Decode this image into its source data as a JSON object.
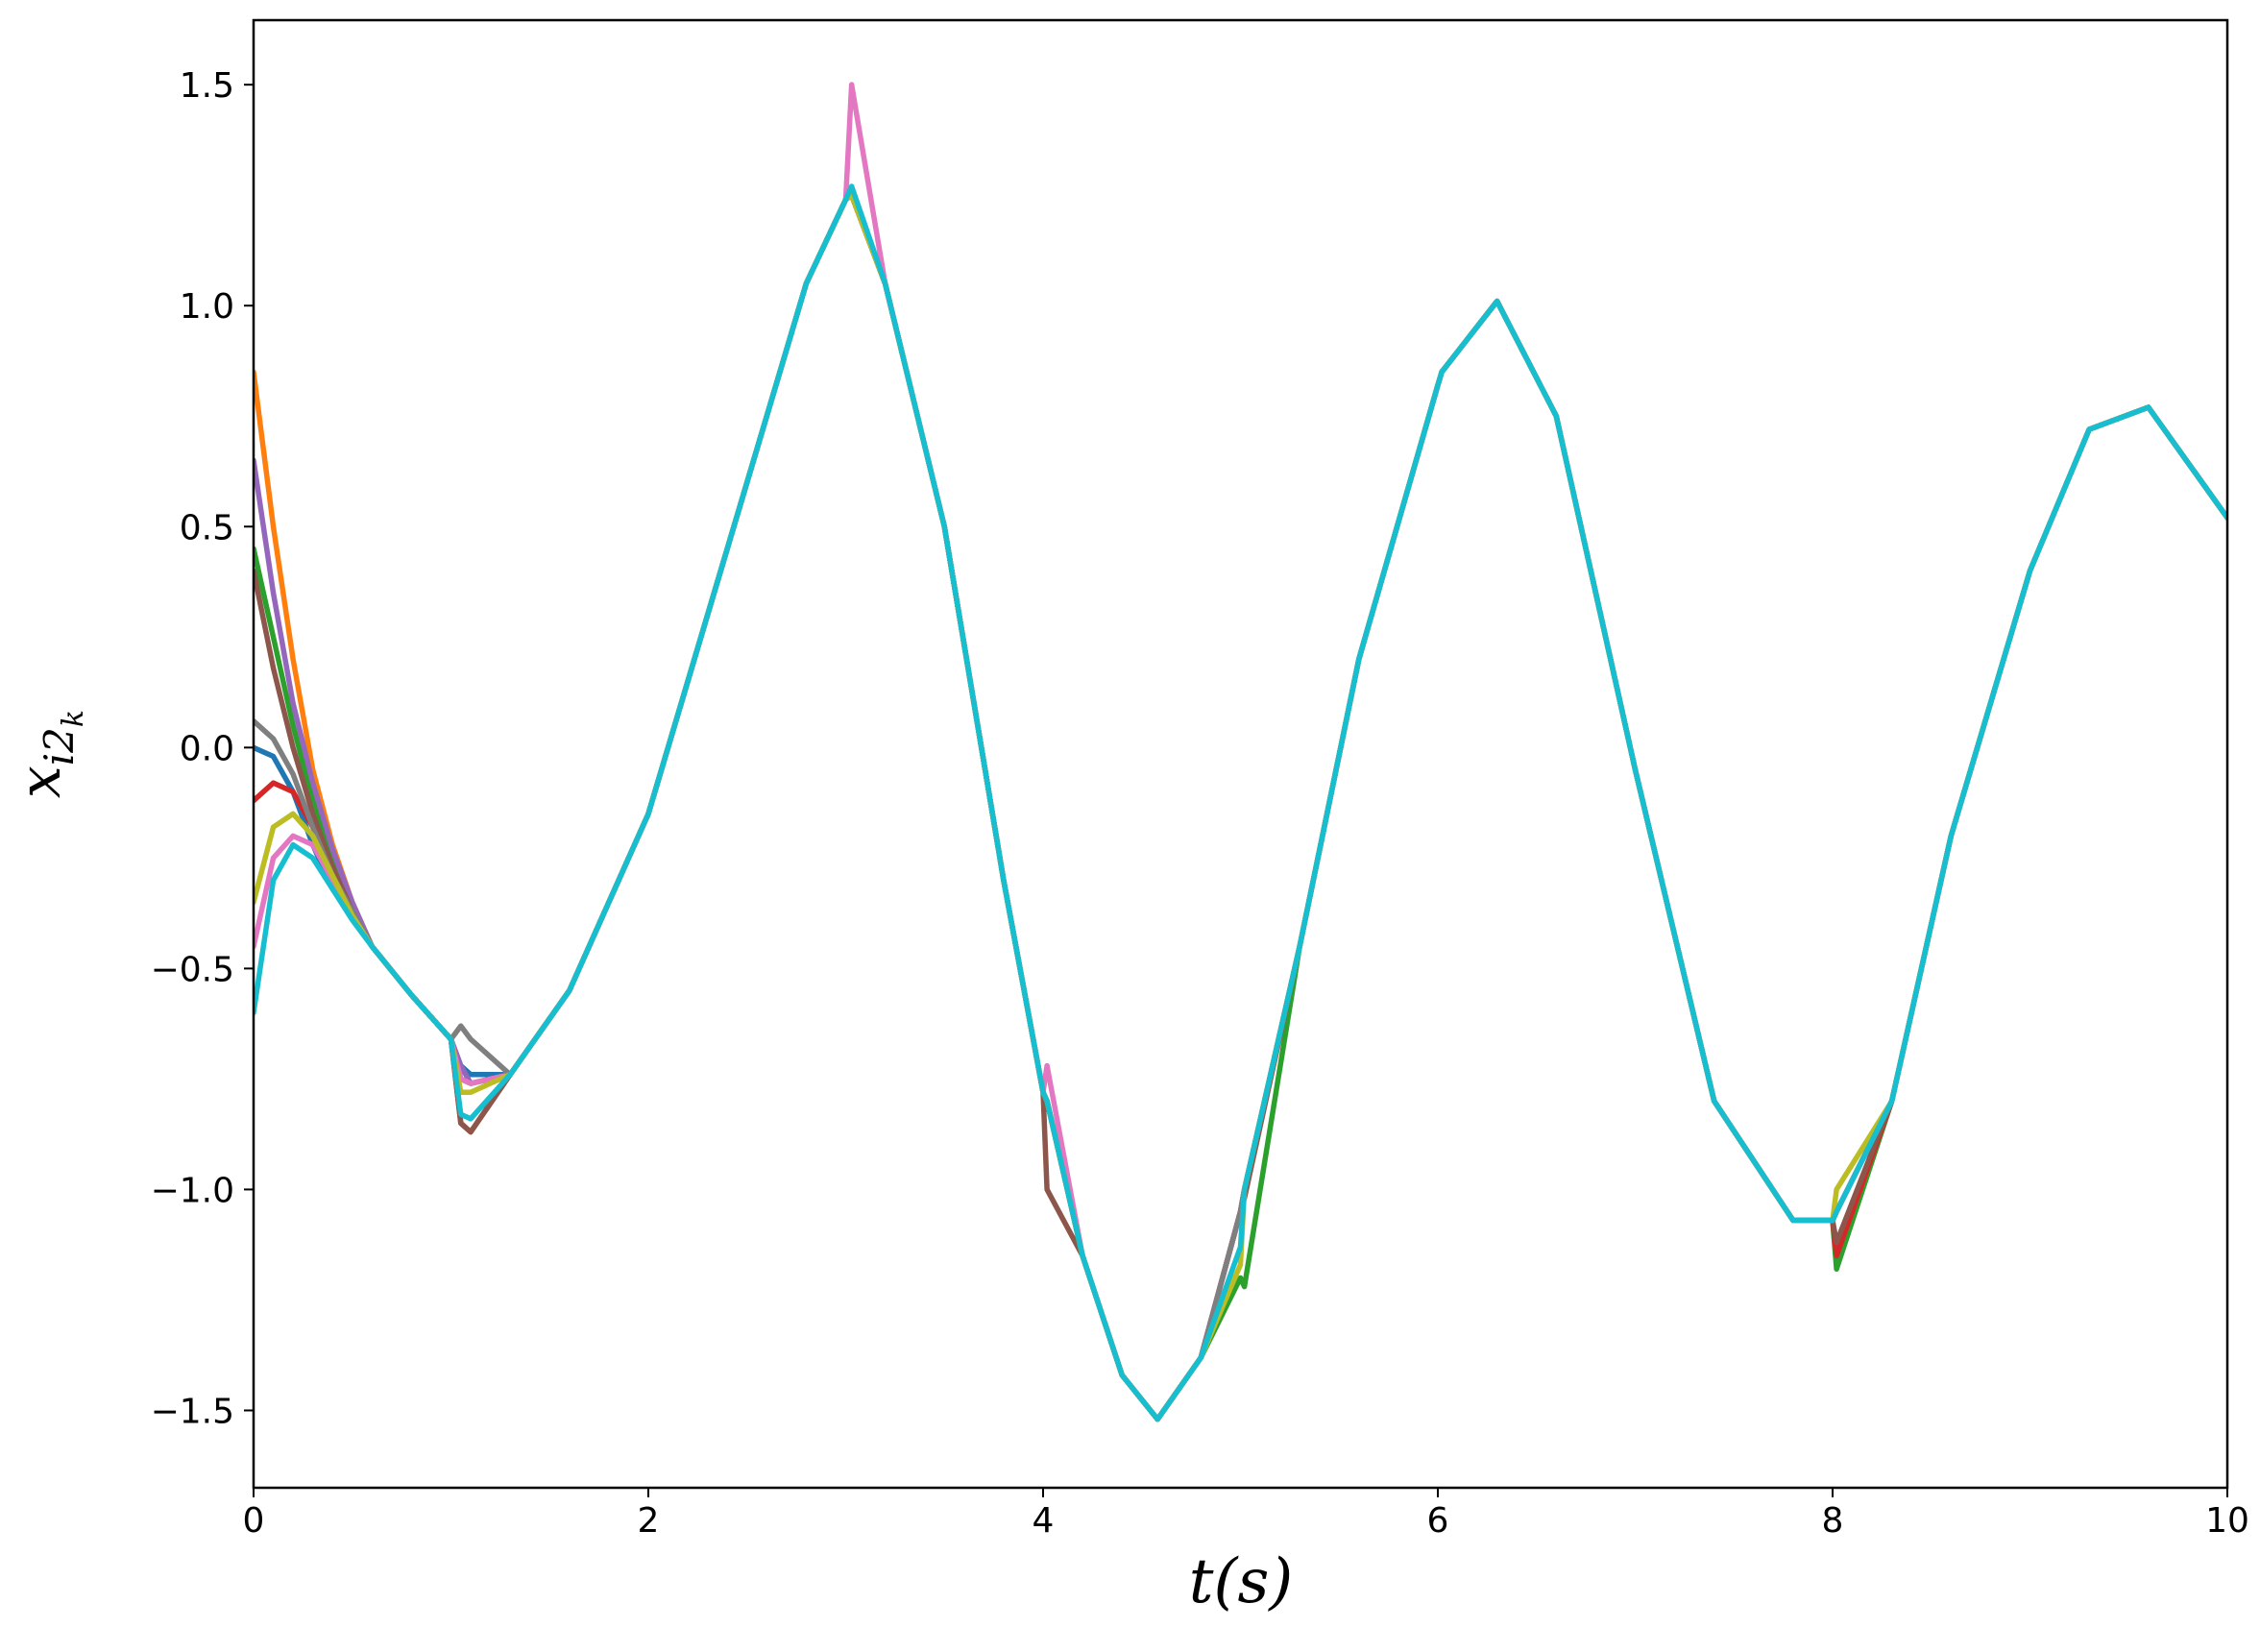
{
  "chart_data": {
    "type": "line",
    "xlabel": "t(s)",
    "ylabel": [
      "x",
      "i2",
      "k"
    ],
    "x": [
      0,
      0.1,
      0.2,
      0.3,
      0.4,
      0.5,
      0.6,
      0.8,
      1.0,
      1.05,
      1.1,
      1.3,
      1.6,
      2.0,
      2.4,
      2.8,
      3.0,
      3.03,
      3.2,
      3.5,
      3.8,
      4.0,
      4.02,
      4.2,
      4.4,
      4.58,
      4.8,
      5.0,
      5.02,
      5.3,
      5.6,
      6.0,
      6.02,
      6.3,
      6.6,
      7.0,
      7.4,
      7.8,
      8.0,
      8.02,
      8.3,
      8.6,
      9.0,
      9.3,
      9.6,
      10.0
    ],
    "xlim": [
      0,
      10
    ],
    "xticks": [
      0,
      2,
      4,
      6,
      8,
      10
    ],
    "ylim": [
      -1.675,
      1.646
    ],
    "yticks": [
      {
        "value": -1.5,
        "label": "−1.5"
      },
      {
        "value": -1,
        "label": "−1.0"
      },
      {
        "value": -0.5,
        "label": "−0.5"
      },
      {
        "value": 0,
        "label": "0.0"
      },
      0.5,
      {
        "value": 1,
        "label": "1.0"
      },
      1.5
    ],
    "grid": false,
    "series": [
      {
        "color": "#1f77b4",
        "values": [
          0.0,
          -0.02,
          -0.1,
          -0.22,
          -0.32,
          -0.38,
          -0.45,
          -0.56,
          -0.66,
          -0.72,
          -0.74,
          -0.74,
          -0.55,
          -0.15,
          0.45,
          1.05,
          1.24,
          1.25,
          1.05,
          0.5,
          -0.3,
          -0.78,
          -0.8,
          -1.15,
          -1.42,
          -1.52,
          -1.38,
          -1.05,
          -1.0,
          -0.45,
          0.2,
          0.82,
          0.85,
          1.01,
          0.75,
          -0.05,
          -0.8,
          -1.07,
          -1.07,
          -1.05,
          -0.8,
          -0.2,
          0.4,
          0.72,
          0.77,
          0.52
        ]
      },
      {
        "color": "#ff7f0e",
        "values": [
          0.85,
          0.5,
          0.2,
          -0.05,
          -0.22,
          -0.35,
          -0.45,
          -0.56,
          -0.66,
          -0.75,
          -0.76,
          -0.74,
          -0.55,
          -0.15,
          0.45,
          1.05,
          1.24,
          1.25,
          1.05,
          0.5,
          -0.3,
          -0.78,
          -0.8,
          -1.15,
          -1.42,
          -1.52,
          -1.38,
          -1.05,
          -1.0,
          -0.45,
          0.2,
          0.82,
          0.85,
          1.01,
          0.75,
          -0.05,
          -0.8,
          -1.07,
          -1.07,
          -1.05,
          -0.8,
          -0.2,
          0.4,
          0.72,
          0.77,
          0.52
        ]
      },
      {
        "color": "#2ca02c",
        "values": [
          0.45,
          0.25,
          0.05,
          -0.12,
          -0.25,
          -0.36,
          -0.45,
          -0.56,
          -0.66,
          -0.75,
          -0.76,
          -0.74,
          -0.55,
          -0.15,
          0.45,
          1.05,
          1.24,
          1.25,
          1.05,
          0.5,
          -0.3,
          -0.78,
          -0.8,
          -1.15,
          -1.42,
          -1.52,
          -1.38,
          -1.2,
          -1.22,
          -0.45,
          0.2,
          0.82,
          0.85,
          1.01,
          0.75,
          -0.05,
          -0.8,
          -1.07,
          -1.07,
          -1.18,
          -0.8,
          -0.2,
          0.4,
          0.72,
          0.77,
          0.52
        ]
      },
      {
        "color": "#d62728",
        "values": [
          -0.12,
          -0.08,
          -0.1,
          -0.18,
          -0.28,
          -0.37,
          -0.45,
          -0.56,
          -0.66,
          -0.85,
          -0.87,
          -0.74,
          -0.55,
          -0.15,
          0.45,
          1.05,
          1.24,
          1.25,
          1.05,
          0.5,
          -0.3,
          -0.78,
          -0.8,
          -1.15,
          -1.42,
          -1.52,
          -1.38,
          -1.05,
          -1.0,
          -0.45,
          0.2,
          0.82,
          0.85,
          1.01,
          0.75,
          -0.05,
          -0.8,
          -1.07,
          -1.07,
          -1.15,
          -0.8,
          -0.2,
          0.4,
          0.72,
          0.77,
          0.52
        ]
      },
      {
        "color": "#9467bd",
        "values": [
          0.65,
          0.35,
          0.1,
          -0.08,
          -0.23,
          -0.35,
          -0.45,
          -0.56,
          -0.66,
          -0.72,
          -0.76,
          -0.74,
          -0.55,
          -0.15,
          0.45,
          1.05,
          1.24,
          1.25,
          1.05,
          0.5,
          -0.3,
          -0.78,
          -0.8,
          -1.15,
          -1.42,
          -1.52,
          -1.38,
          -1.05,
          -1.0,
          -0.45,
          0.2,
          0.82,
          0.85,
          1.01,
          0.75,
          -0.05,
          -0.8,
          -1.07,
          -1.07,
          -1.05,
          -0.8,
          -0.2,
          0.4,
          0.72,
          0.77,
          0.52
        ]
      },
      {
        "color": "#8c564b",
        "values": [
          0.4,
          0.18,
          0.0,
          -0.15,
          -0.27,
          -0.37,
          -0.45,
          -0.56,
          -0.66,
          -0.85,
          -0.87,
          -0.74,
          -0.55,
          -0.15,
          0.45,
          1.05,
          1.24,
          1.25,
          1.05,
          0.5,
          -0.3,
          -0.78,
          -1.0,
          -1.15,
          -1.42,
          -1.52,
          -1.38,
          -1.05,
          -1.02,
          -0.45,
          0.2,
          0.82,
          0.85,
          1.01,
          0.75,
          -0.05,
          -0.8,
          -1.07,
          -1.07,
          -1.12,
          -0.8,
          -0.2,
          0.4,
          0.72,
          0.77,
          0.52
        ]
      },
      {
        "color": "#e377c2",
        "values": [
          -0.45,
          -0.25,
          -0.2,
          -0.22,
          -0.3,
          -0.38,
          -0.45,
          -0.56,
          -0.66,
          -0.75,
          -0.76,
          -0.74,
          -0.55,
          -0.15,
          0.45,
          1.05,
          1.24,
          1.5,
          1.05,
          0.5,
          -0.3,
          -0.78,
          -0.72,
          -1.15,
          -1.42,
          -1.52,
          -1.38,
          -1.05,
          -1.0,
          -0.45,
          0.2,
          0.82,
          0.85,
          1.01,
          0.75,
          -0.05,
          -0.8,
          -1.07,
          -1.07,
          -1.05,
          -0.8,
          -0.2,
          0.4,
          0.72,
          0.77,
          0.52
        ]
      },
      {
        "color": "#7f7f7f",
        "values": [
          0.06,
          0.02,
          -0.06,
          -0.18,
          -0.29,
          -0.37,
          -0.45,
          -0.56,
          -0.66,
          -0.63,
          -0.66,
          -0.74,
          -0.55,
          -0.15,
          0.45,
          1.05,
          1.24,
          1.25,
          1.05,
          0.5,
          -0.3,
          -0.78,
          -0.8,
          -1.15,
          -1.42,
          -1.52,
          -1.38,
          -1.05,
          -1.0,
          -0.45,
          0.2,
          0.82,
          0.85,
          1.01,
          0.75,
          -0.05,
          -0.8,
          -1.07,
          -1.07,
          -1.05,
          -0.8,
          -0.2,
          0.4,
          0.72,
          0.77,
          0.52
        ]
      },
      {
        "color": "#bcbd22",
        "values": [
          -0.35,
          -0.18,
          -0.15,
          -0.2,
          -0.29,
          -0.38,
          -0.45,
          -0.56,
          -0.66,
          -0.78,
          -0.78,
          -0.74,
          -0.55,
          -0.15,
          0.45,
          1.05,
          1.24,
          1.25,
          1.05,
          0.5,
          -0.3,
          -0.78,
          -0.8,
          -1.15,
          -1.42,
          -1.52,
          -1.38,
          -1.17,
          -1.0,
          -0.45,
          0.2,
          0.82,
          0.85,
          1.01,
          0.75,
          -0.05,
          -0.8,
          -1.07,
          -1.07,
          -1.0,
          -0.8,
          -0.2,
          0.4,
          0.72,
          0.77,
          0.52
        ]
      },
      {
        "color": "#17becf",
        "values": [
          -0.6,
          -0.3,
          -0.22,
          -0.25,
          -0.32,
          -0.39,
          -0.45,
          -0.56,
          -0.66,
          -0.83,
          -0.84,
          -0.74,
          -0.55,
          -0.15,
          0.45,
          1.05,
          1.24,
          1.27,
          1.05,
          0.5,
          -0.3,
          -0.78,
          -0.8,
          -1.15,
          -1.42,
          -1.52,
          -1.38,
          -1.13,
          -1.0,
          -0.45,
          0.2,
          0.82,
          0.85,
          1.01,
          0.75,
          -0.05,
          -0.8,
          -1.07,
          -1.07,
          -1.05,
          -0.8,
          -0.2,
          0.4,
          0.72,
          0.77,
          0.52
        ]
      }
    ]
  }
}
